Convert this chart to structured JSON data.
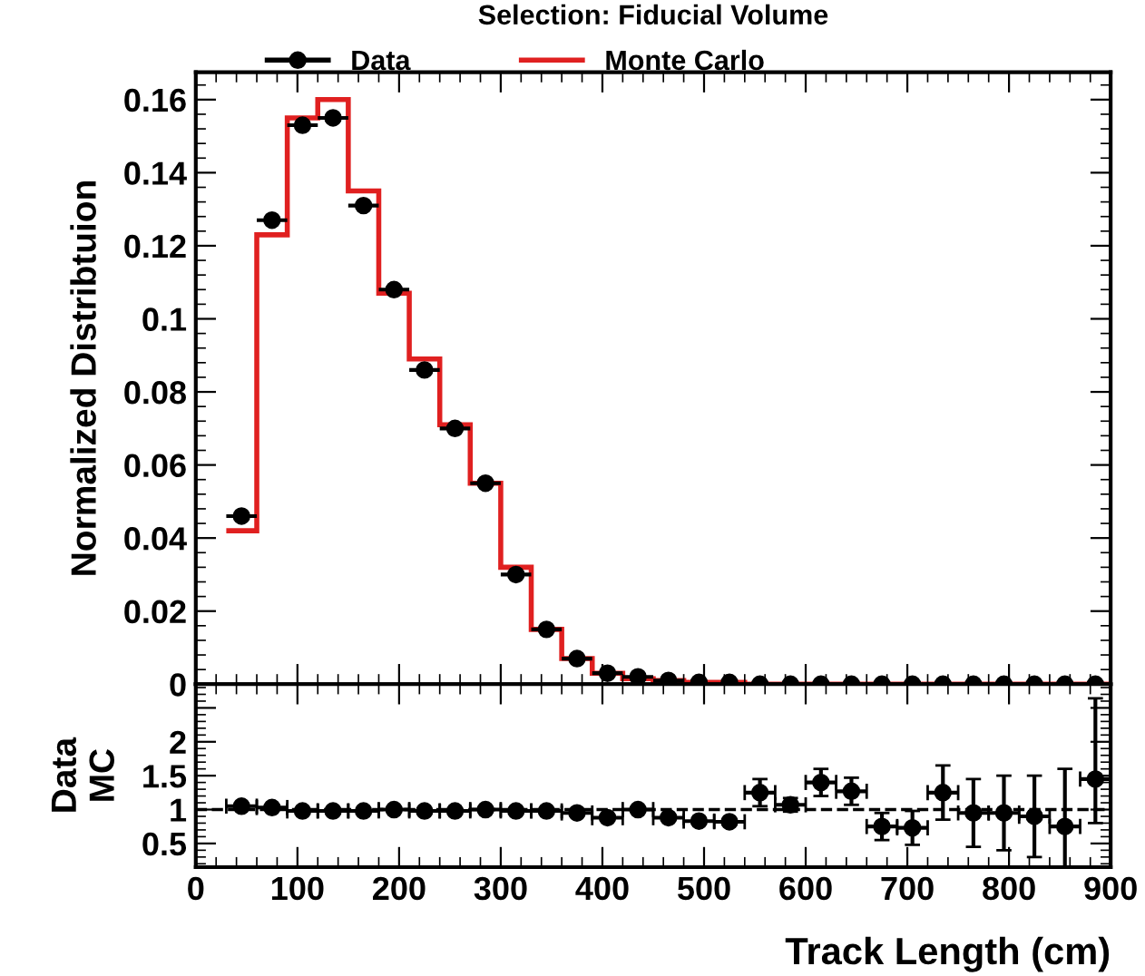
{
  "chart_data": [
    {
      "type": "histogram",
      "title": "Selection: Fiducial Volume",
      "ylabel": "Normalized Distribtuion",
      "bins": [
        30,
        60,
        90,
        120,
        150,
        180,
        210,
        240,
        270,
        300,
        330,
        360,
        390,
        420,
        450,
        480,
        510,
        540,
        570,
        600,
        630,
        660,
        690,
        720,
        750,
        780,
        810,
        840,
        870,
        900
      ],
      "series": [
        {
          "name": "Data",
          "type": "scatter",
          "color": "#000000",
          "x": [
            45,
            75,
            105,
            135,
            165,
            195,
            225,
            255,
            285,
            315,
            345,
            375,
            405,
            435,
            465,
            495,
            525,
            555,
            585,
            615,
            645,
            675,
            705,
            735,
            765,
            795,
            825,
            855,
            885
          ],
          "values": [
            0.046,
            0.127,
            0.153,
            0.155,
            0.131,
            0.108,
            0.086,
            0.07,
            0.055,
            0.03,
            0.015,
            0.007,
            0.003,
            0.002,
            0.001,
            0.0005,
            0.0005,
            0,
            0,
            0,
            0,
            0,
            0,
            0,
            0,
            0,
            0,
            0,
            0
          ],
          "xerrors": [
            15,
            15,
            15,
            15,
            15,
            15,
            15,
            15,
            15,
            15,
            15,
            15,
            15,
            15,
            15,
            null,
            null,
            null,
            null,
            null,
            null,
            null,
            null,
            null,
            null,
            null,
            null,
            null,
            null
          ]
        },
        {
          "name": "Monte Carlo",
          "type": "histogram",
          "color": "#e02020",
          "values": [
            0.042,
            0.123,
            0.155,
            0.16,
            0.135,
            0.107,
            0.089,
            0.071,
            0.055,
            0.032,
            0.015,
            0.007,
            0.003,
            0.0015,
            0.001,
            0.0005,
            0.0005,
            0,
            0,
            0,
            0,
            0,
            0,
            0,
            0,
            0,
            0,
            0,
            0
          ]
        }
      ],
      "xlim": [
        0,
        900
      ],
      "xticks": [
        0,
        100,
        200,
        300,
        400,
        500,
        600,
        700,
        800,
        900
      ],
      "ylim": [
        0,
        0.1675
      ],
      "yticks": [
        {
          "value": 0,
          "label": "0"
        },
        0.02,
        0.04,
        0.06,
        0.08,
        0.1,
        0.12,
        0.14,
        0.16
      ],
      "tick_labels": "y",
      "legend": "top",
      "marker": "circle"
    },
    {
      "type": "scatter",
      "xlabel": "Track Length (cm)",
      "ylabel": "Data\nMC",
      "x": [
        45,
        75,
        105,
        135,
        165,
        195,
        225,
        255,
        285,
        315,
        345,
        375,
        405,
        435,
        465,
        495,
        525,
        555,
        585,
        615,
        645,
        675,
        705,
        735,
        765,
        795,
        825,
        855,
        885
      ],
      "values": [
        1.05,
        1.03,
        0.98,
        0.98,
        0.98,
        1.0,
        0.98,
        0.98,
        1.0,
        0.98,
        0.98,
        0.95,
        0.88,
        1.0,
        0.88,
        0.83,
        0.82,
        1.25,
        1.07,
        1.4,
        1.27,
        0.75,
        0.73,
        1.25,
        0.95,
        0.95,
        0.9,
        0.75,
        1.45
      ],
      "errors": [
        null,
        null,
        null,
        null,
        null,
        null,
        null,
        null,
        null,
        null,
        null,
        null,
        null,
        null,
        null,
        null,
        null,
        0.2,
        0.1,
        0.2,
        0.2,
        0.2,
        0.25,
        0.4,
        0.5,
        0.55,
        0.6,
        0.85,
        [
          0.8,
          2.64
        ]
      ],
      "xerrors": [
        15,
        15,
        15,
        15,
        15,
        15,
        15,
        15,
        15,
        15,
        15,
        15,
        15,
        15,
        15,
        15,
        15,
        15,
        15,
        15,
        15,
        15,
        15,
        15,
        15,
        15,
        15,
        15,
        15
      ],
      "color": "#000000",
      "marker": "circle",
      "ref_lines": [
        {
          "axis": "y",
          "value": 1,
          "line_style": "dashed",
          "color": "#000000"
        }
      ],
      "xlim": [
        0,
        900
      ],
      "xticks": [
        0,
        100,
        200,
        300,
        400,
        500,
        600,
        700,
        800,
        900
      ],
      "ylim": [
        0.15,
        2.85
      ],
      "yticks": [
        0.5,
        1,
        1.5,
        2,
        {
          "value": 2.5,
          "label": null
        }
      ]
    }
  ]
}
